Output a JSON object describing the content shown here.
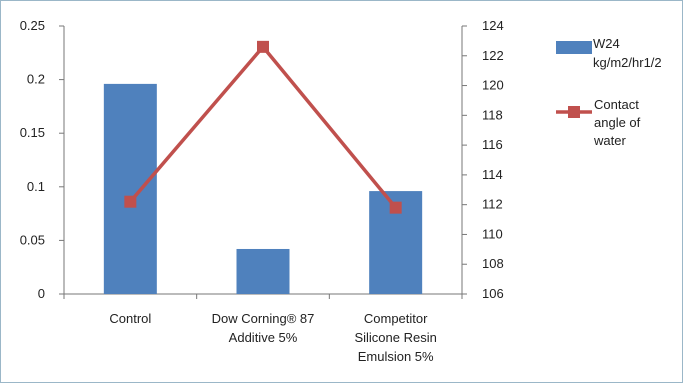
{
  "chart_data": {
    "type": "bar",
    "categories": [
      [
        "Control"
      ],
      [
        "Dow Corning® 87",
        "Additive 5%"
      ],
      [
        "Competitor",
        "Silicone Resin",
        "Emulsion 5%"
      ]
    ],
    "series": [
      {
        "name": "W24 kg/m2/hr1/2",
        "legend_lines": [
          "W24",
          "kg/m2/hr1/2"
        ],
        "type": "bar",
        "axis": "left",
        "color": "#4f81bd",
        "values": [
          0.196,
          0.042,
          0.096
        ]
      },
      {
        "name": "Contact angle of water",
        "legend_lines": [
          "Contact",
          "angle of",
          "water"
        ],
        "type": "line",
        "axis": "right",
        "color": "#c0504d",
        "values": [
          112.2,
          122.6,
          111.8
        ]
      }
    ],
    "y_left": {
      "min": 0,
      "max": 0.25,
      "ticks": [
        "0",
        "0.05",
        "0.1",
        "0.15",
        "0.2",
        "0.25"
      ]
    },
    "y_right": {
      "min": 106,
      "max": 124,
      "ticks": [
        "106",
        "108",
        "110",
        "112",
        "114",
        "116",
        "118",
        "120",
        "122",
        "124"
      ]
    },
    "grid": false,
    "legend_position": "right"
  }
}
